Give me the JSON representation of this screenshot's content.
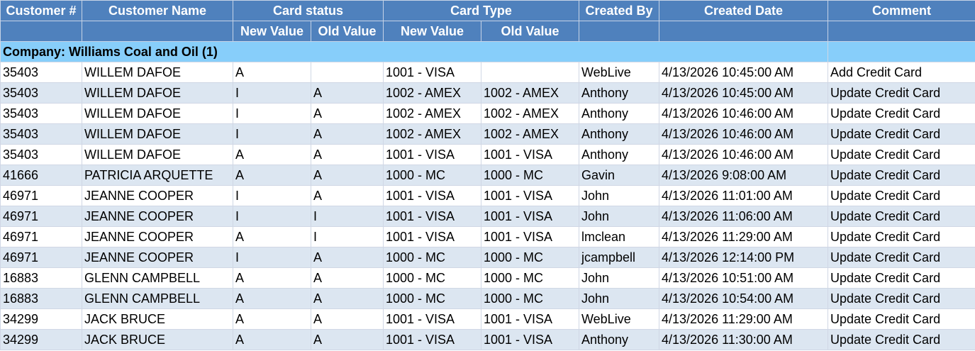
{
  "header": {
    "columns": [
      "Customer #",
      "Customer Name",
      "Card status",
      "Card Type",
      "Created By",
      "Created Date",
      "Comment"
    ],
    "sub_headers": [
      "New Value",
      "Old Value",
      "New Value",
      "Old Value"
    ]
  },
  "company": "Company: Williams Coal and Oil (1)",
  "rows": [
    [
      "35403",
      "WILLEM DAFOE",
      "A",
      null,
      "1001 - VISA",
      null,
      "WebLive",
      "4/13/2026 10:45:00 AM",
      "Add Credit Card"
    ],
    [
      "35403",
      "WILLEM DAFOE",
      "I",
      "A",
      "1002 - AMEX",
      "1002 - AMEX",
      "Anthony",
      "4/13/2026 10:45:00 AM",
      "Update Credit Card"
    ],
    [
      "35403",
      "WILLEM DAFOE",
      "I",
      "A",
      "1002 - AMEX",
      "1002 - AMEX",
      "Anthony",
      "4/13/2026 10:46:00 AM",
      "Update Credit Card"
    ],
    [
      "35403",
      "WILLEM DAFOE",
      "I",
      "A",
      "1002 - AMEX",
      "1002 - AMEX",
      "Anthony",
      "4/13/2026 10:46:00 AM",
      "Update Credit Card"
    ],
    [
      "35403",
      "WILLEM DAFOE",
      "A",
      "A",
      "1001 - VISA",
      "1001 - VISA",
      "Anthony",
      "4/13/2026 10:46:00 AM",
      "Update Credit Card"
    ],
    [
      "41666",
      "PATRICIA ARQUETTE",
      "A",
      "A",
      "1000 - MC",
      "1000 - MC",
      "Gavin",
      "4/13/2026 9:08:00 AM",
      "Update Credit Card"
    ],
    [
      "46971",
      "JEANNE COOPER",
      "I",
      "A",
      "1001 - VISA",
      "1001 - VISA",
      "John",
      "4/13/2026 11:01:00 AM",
      "Update Credit Card"
    ],
    [
      "46971",
      "JEANNE COOPER",
      "I",
      "I",
      "1001 - VISA",
      "1001 - VISA",
      "John",
      "4/13/2026 11:06:00 AM",
      "Update Credit Card"
    ],
    [
      "46971",
      "JEANNE COOPER",
      "A",
      "I",
      "1001 - VISA",
      "1001 - VISA",
      "lmclean",
      "4/13/2026 11:29:00 AM",
      "Update Credit Card"
    ],
    [
      "46971",
      "JEANNE COOPER",
      "I",
      "A",
      "1000 - MC",
      "1000 - MC",
      "jcampbell",
      "4/13/2026 12:14:00 PM",
      "Update Credit Card"
    ],
    [
      "16883",
      "GLENN CAMPBELL",
      "A",
      "A",
      "1000 - MC",
      "1000 - MC",
      "John",
      "4/13/2026 10:51:00 AM",
      "Update Credit Card"
    ],
    [
      "16883",
      "GLENN CAMPBELL",
      "A",
      "A",
      "1000 - MC",
      "1000 - MC",
      "John",
      "4/13/2026 10:54:00 AM",
      "Update Credit Card"
    ],
    [
      "34299",
      "JACK BRUCE",
      "A",
      "A",
      "1001 - VISA",
      "1001 - VISA",
      "WebLive",
      "4/13/2026 11:29:00 AM",
      "Update Credit Card"
    ],
    [
      "34299",
      "JACK BRUCE",
      "A",
      "A",
      "1001 - VISA",
      "1001 - VISA",
      "Anthony",
      "4/13/2026 11:30:00 AM",
      "Update Credit Card"
    ]
  ]
}
